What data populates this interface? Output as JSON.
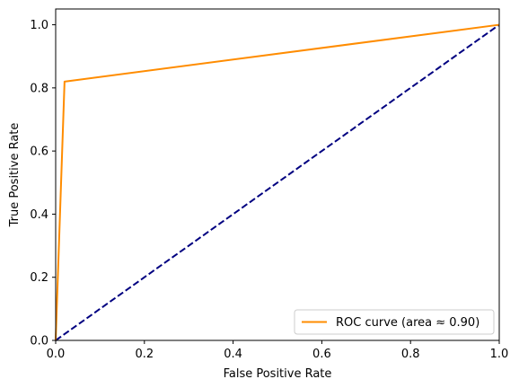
{
  "chart_data": {
    "type": "line",
    "title": "",
    "xlabel": "False Positive Rate",
    "ylabel": "True Positive Rate",
    "xlim": [
      0.0,
      1.0
    ],
    "ylim": [
      0.0,
      1.05
    ],
    "xticks": [
      "0.0",
      "0.2",
      "0.4",
      "0.6",
      "0.8",
      "1.0"
    ],
    "yticks": [
      "0.0",
      "0.2",
      "0.4",
      "0.6",
      "0.8",
      "1.0"
    ],
    "grid": false,
    "legend_position": "lower-right",
    "series": [
      {
        "name": "ROC curve (area ≈ 0.90)",
        "color": "#ff8c00",
        "style": "solid",
        "x": [
          0.0,
          0.02,
          1.0
        ],
        "y": [
          0.0,
          0.82,
          1.0
        ]
      },
      {
        "name": "",
        "color": "#000080",
        "style": "dashed",
        "x": [
          0.0,
          1.0
        ],
        "y": [
          0.0,
          1.0
        ]
      }
    ]
  }
}
